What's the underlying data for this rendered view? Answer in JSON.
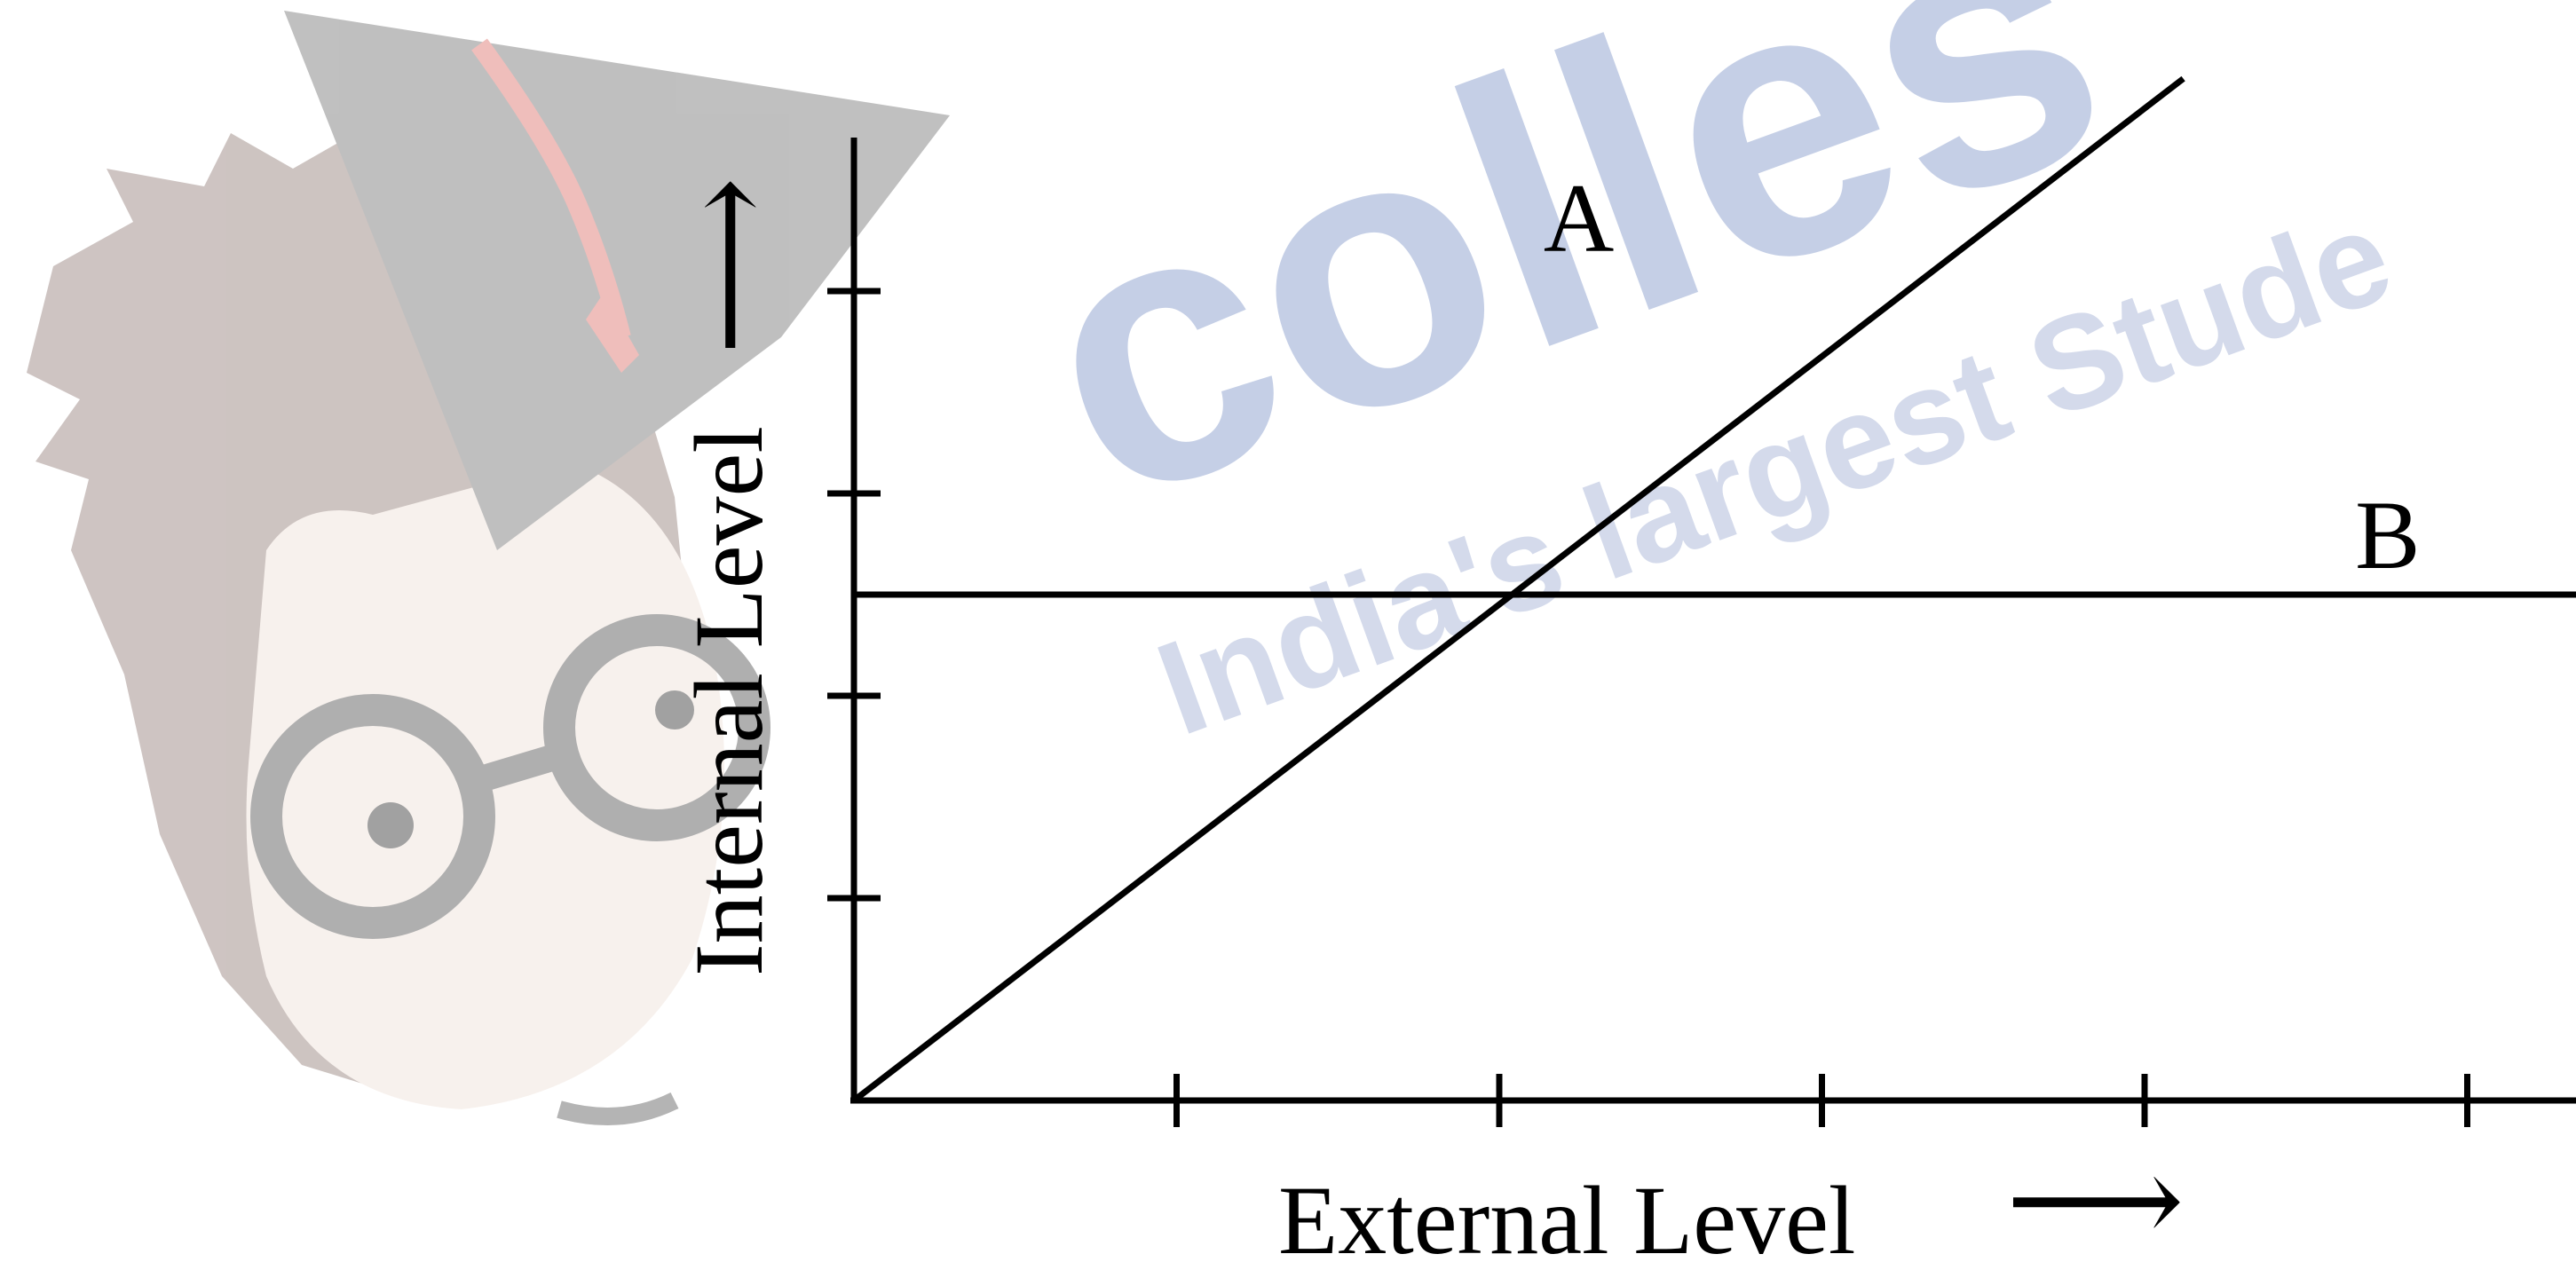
{
  "watermark": {
    "brand_text": "colles",
    "tagline_text": "India's largest Stude",
    "color": "#9fb0d6",
    "mascot_icon": "graduate-student-mascot-icon"
  },
  "chart_data": {
    "type": "line",
    "xlabel": "External Level",
    "ylabel": "Internal Level",
    "x_axis_arrow": "⟶",
    "y_axis_arrow": "⟶",
    "xlim": [
      0,
      5.35
    ],
    "ylim": [
      0,
      5.05
    ],
    "x_ticks": [
      1,
      2,
      3,
      4,
      5
    ],
    "y_ticks": [
      1,
      2,
      3,
      4
    ],
    "show_tick_labels": false,
    "grid": false,
    "series": [
      {
        "name": "A",
        "x": [
          0,
          4.12
        ],
        "y": [
          0,
          5.05
        ],
        "color": "#000000"
      },
      {
        "name": "B",
        "x": [
          0,
          5.35
        ],
        "y": [
          2.5,
          2.5
        ],
        "color": "#000000"
      }
    ]
  }
}
